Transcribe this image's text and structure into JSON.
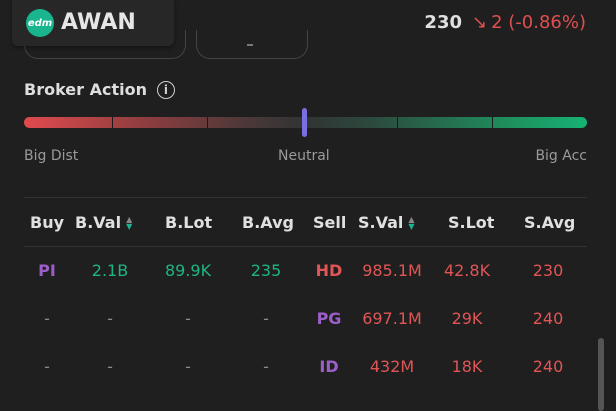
{
  "header": {
    "logo_text": "edm",
    "ticker": "AWAN",
    "price": "230",
    "change": "2 (-0.86%)"
  },
  "broker_action": {
    "title": "Broker Action",
    "info_icon": "i",
    "labels": {
      "left": "Big Dist",
      "mid": "Neutral",
      "right": "Big Acc"
    },
    "level": 0.5
  },
  "table": {
    "headers": [
      "Buy",
      "B.Val",
      "B.Lot",
      "B.Avg",
      "Sell",
      "S.Val",
      "S.Lot",
      "S.Avg"
    ],
    "rows": [
      {
        "buy": "PI",
        "bval": "2.1B",
        "blot": "89.9K",
        "bavg": "235",
        "sell": "HD",
        "sval": "985.1M",
        "slot": "42.8K",
        "savg": "230"
      },
      {
        "buy": "-",
        "bval": "-",
        "blot": "-",
        "bavg": "-",
        "sell": "PG",
        "sval": "697.1M",
        "slot": "29K",
        "savg": "240"
      },
      {
        "buy": "-",
        "bval": "-",
        "blot": "-",
        "bavg": "-",
        "sell": "ID",
        "sval": "432M",
        "slot": "18K",
        "savg": "240"
      }
    ]
  },
  "colors": {
    "positive": "#1db584",
    "negative": "#e05555",
    "broker_foreign": "#9c5fc9",
    "marker": "#7a6fe0"
  }
}
